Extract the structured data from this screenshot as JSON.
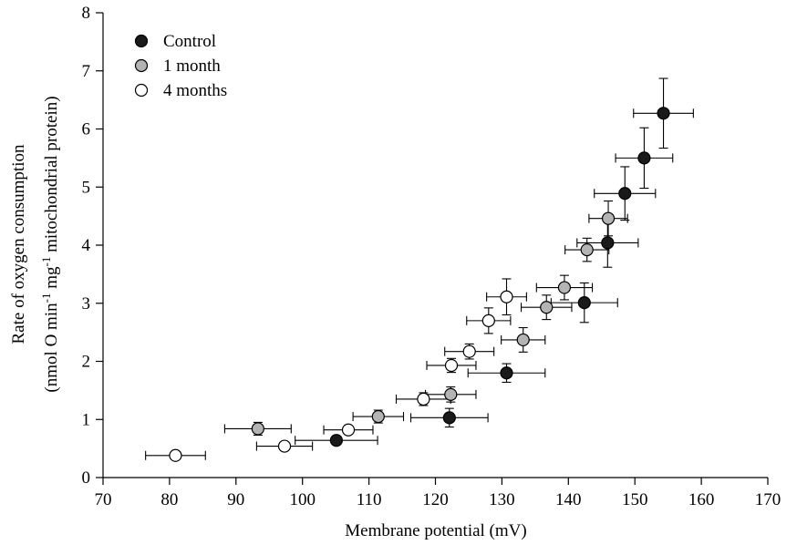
{
  "chart_data": {
    "type": "scatter",
    "title": "",
    "xlabel": "Membrane potential (mV)",
    "ylabel_line1": "Rate of oxygen consumption",
    "ylabel_line2_pre": "(nmol O min",
    "ylabel_line2_sup1": "-1",
    "ylabel_line2_mid": " mg",
    "ylabel_line2_sup2": "-1",
    "ylabel_line2_post": " mitochondrial protein)",
    "xlim": [
      70,
      170
    ],
    "ylim": [
      0,
      8
    ],
    "xticks": [
      70,
      80,
      90,
      100,
      110,
      120,
      130,
      140,
      150,
      160,
      170
    ],
    "yticks": [
      0,
      1,
      2,
      3,
      4,
      5,
      6,
      7,
      8
    ],
    "legend_position": "top-left",
    "series": [
      {
        "name": "Control",
        "color": "#1a1a1a",
        "points": [
          {
            "x": 105.1,
            "y": 0.64,
            "xerr": 6.2,
            "yerr": 0.05
          },
          {
            "x": 122.1,
            "y": 1.03,
            "xerr": 5.8,
            "yerr": 0.16
          },
          {
            "x": 130.7,
            "y": 1.8,
            "xerr": 5.8,
            "yerr": 0.16
          },
          {
            "x": 142.4,
            "y": 3.01,
            "xerr": 5.0,
            "yerr": 0.34
          },
          {
            "x": 145.9,
            "y": 4.04,
            "xerr": 4.6,
            "yerr": 0.42
          },
          {
            "x": 148.5,
            "y": 4.89,
            "xerr": 4.6,
            "yerr": 0.46
          },
          {
            "x": 151.4,
            "y": 5.5,
            "xerr": 4.3,
            "yerr": 0.52
          },
          {
            "x": 154.3,
            "y": 6.27,
            "xerr": 4.5,
            "yerr": 0.6
          }
        ]
      },
      {
        "name": "1 month",
        "color": "#b4b4b4",
        "points": [
          {
            "x": 93.3,
            "y": 0.84,
            "xerr": 5.0,
            "yerr": 0.11
          },
          {
            "x": 111.4,
            "y": 1.05,
            "xerr": 3.8,
            "yerr": 0.11
          },
          {
            "x": 122.3,
            "y": 1.43,
            "xerr": 3.8,
            "yerr": 0.13
          },
          {
            "x": 133.2,
            "y": 2.37,
            "xerr": 3.3,
            "yerr": 0.21
          },
          {
            "x": 136.7,
            "y": 2.93,
            "xerr": 3.8,
            "yerr": 0.21
          },
          {
            "x": 139.4,
            "y": 3.27,
            "xerr": 4.2,
            "yerr": 0.21
          },
          {
            "x": 142.8,
            "y": 3.92,
            "xerr": 3.3,
            "yerr": 0.2
          },
          {
            "x": 146.0,
            "y": 4.46,
            "xerr": 2.9,
            "yerr": 0.3
          }
        ]
      },
      {
        "name": "4 months",
        "color": "#ffffff",
        "points": [
          {
            "x": 80.9,
            "y": 0.38,
            "xerr": 4.5,
            "yerr": 0.05
          },
          {
            "x": 97.3,
            "y": 0.54,
            "xerr": 4.2,
            "yerr": 0.06
          },
          {
            "x": 106.9,
            "y": 0.82,
            "xerr": 3.7,
            "yerr": 0.07
          },
          {
            "x": 118.2,
            "y": 1.35,
            "xerr": 4.1,
            "yerr": 0.11
          },
          {
            "x": 122.4,
            "y": 1.93,
            "xerr": 3.7,
            "yerr": 0.12
          },
          {
            "x": 125.1,
            "y": 2.17,
            "xerr": 3.7,
            "yerr": 0.13
          },
          {
            "x": 128.0,
            "y": 2.7,
            "xerr": 3.3,
            "yerr": 0.22
          },
          {
            "x": 130.7,
            "y": 3.11,
            "xerr": 3.0,
            "yerr": 0.31
          }
        ]
      }
    ]
  }
}
